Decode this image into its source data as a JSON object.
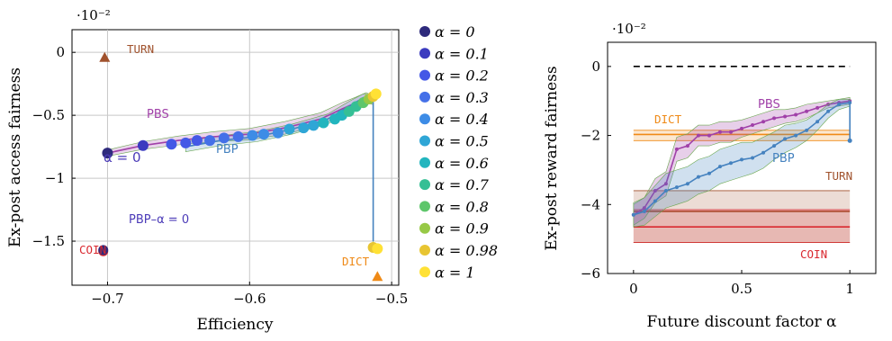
{
  "chart_data": [
    {
      "type": "scatter",
      "xlabel": "Efficiency",
      "ylabel": "Ex-post access fairness",
      "xlim": [
        -0.725,
        -0.495
      ],
      "ylim": [
        -1.85,
        0.18
      ],
      "y_multiplier": "·10⁻²",
      "xticks": [
        -0.7,
        -0.6,
        -0.5
      ],
      "xtick_labels": [
        "−0.7",
        "−0.6",
        "−0.5"
      ],
      "yticks": [
        0,
        -0.5,
        -1,
        -1.5
      ],
      "ytick_labels": [
        "0",
        "−0.5",
        "−1",
        "−1.5"
      ],
      "grid": true,
      "alpha_values": [
        0,
        0.1,
        0.2,
        0.3,
        0.4,
        0.5,
        0.6,
        0.7,
        0.8,
        0.9,
        0.98,
        1
      ],
      "alpha_colors": [
        "#2e2a7c",
        "#3b3bbf",
        "#4458e6",
        "#4470e8",
        "#3d8ce6",
        "#2fa6d6",
        "#22b5be",
        "#35bf95",
        "#5ec66b",
        "#97c946",
        "#e8c532",
        "#ffe135"
      ],
      "series": [
        {
          "name": "PBS",
          "color": "#a040a8",
          "points": [
            [
              -0.7,
              -0.8
            ],
            [
              -0.675,
              -0.74
            ],
            [
              -0.65,
              -0.7
            ],
            [
              -0.625,
              -0.67
            ],
            [
              -0.6,
              -0.65
            ],
            [
              -0.575,
              -0.6
            ],
            [
              -0.55,
              -0.53
            ],
            [
              -0.535,
              -0.45
            ],
            [
              -0.525,
              -0.4
            ],
            [
              -0.518,
              -0.36
            ],
            [
              -0.513,
              -0.38
            ]
          ],
          "band": [
            0.025,
            0.03,
            0.035,
            0.04,
            0.045,
            0.05,
            0.05,
            0.05,
            0.045,
            0.04,
            0.035
          ]
        },
        {
          "name": "PBP",
          "color": "#4582bf",
          "points": [
            [
              -0.645,
              -0.75
            ],
            [
              -0.62,
              -0.7
            ],
            [
              -0.595,
              -0.67
            ],
            [
              -0.57,
              -0.61
            ],
            [
              -0.545,
              -0.53
            ],
            [
              -0.53,
              -0.43
            ],
            [
              -0.52,
              -0.36
            ],
            [
              -0.513,
              -0.36
            ],
            [
              -0.513,
              -1.5
            ]
          ],
          "band": [
            0.04,
            0.04,
            0.04,
            0.04,
            0.04,
            0.04,
            0.03,
            0.02,
            0.02
          ]
        }
      ],
      "alpha_points": [
        [
          -0.7,
          -0.8,
          0
        ],
        [
          -0.675,
          -0.74,
          0.1
        ],
        [
          -0.655,
          -0.73,
          0.2
        ],
        [
          -0.645,
          -0.72,
          0.2
        ],
        [
          -0.637,
          -0.7,
          0.2
        ],
        [
          -0.628,
          -0.7,
          0.3
        ],
        [
          -0.618,
          -0.68,
          0.3
        ],
        [
          -0.608,
          -0.67,
          0.3
        ],
        [
          -0.598,
          -0.66,
          0.4
        ],
        [
          -0.59,
          -0.65,
          0.4
        ],
        [
          -0.58,
          -0.64,
          0.4
        ],
        [
          -0.572,
          -0.61,
          0.5
        ],
        [
          -0.562,
          -0.6,
          0.5
        ],
        [
          -0.555,
          -0.58,
          0.5
        ],
        [
          -0.548,
          -0.56,
          0.6
        ],
        [
          -0.54,
          -0.53,
          0.6
        ],
        [
          -0.535,
          -0.5,
          0.6
        ],
        [
          -0.53,
          -0.47,
          0.7
        ],
        [
          -0.525,
          -0.43,
          0.7
        ],
        [
          -0.52,
          -0.4,
          0.8
        ],
        [
          -0.516,
          -0.37,
          0.9
        ],
        [
          -0.513,
          -0.35,
          0.98
        ],
        [
          -0.511,
          -0.33,
          1
        ],
        [
          -0.513,
          -1.55,
          0.98
        ],
        [
          -0.51,
          -1.56,
          1
        ]
      ],
      "markers": [
        {
          "label": "TURN",
          "x": -0.702,
          "y": -0.04,
          "shape": "triangle",
          "color": "#a0522d"
        },
        {
          "label": "DICT",
          "x": -0.51,
          "y": -1.78,
          "shape": "triangle",
          "color": "#ef8a17"
        },
        {
          "label": "COIN",
          "x": -0.703,
          "y": -1.58,
          "shape": "circle",
          "color": "#d9282f"
        },
        {
          "label": "PBP–α = 0",
          "x": -0.703,
          "y": -1.57,
          "shape": "circle",
          "color": "#2e2a7c"
        }
      ],
      "annotations": [
        "PBS",
        "PBP",
        "α = 0"
      ]
    },
    {
      "type": "line",
      "xlabel": "Future discount factor α",
      "ylabel": "Ex-post reward fairness",
      "xlim": [
        -0.12,
        1.12
      ],
      "ylim": [
        -6,
        0.7
      ],
      "y_multiplier": "·10⁻²",
      "xticks": [
        0,
        0.5,
        1
      ],
      "xtick_labels": [
        "0",
        "0.5",
        "1"
      ],
      "yticks": [
        0,
        -2,
        -4,
        -6
      ],
      "ytick_labels": [
        "0",
        "−2",
        "−4",
        "−6"
      ],
      "grid": false,
      "reference_line": {
        "y": 0,
        "style": "dashed",
        "color": "#000000"
      },
      "series": [
        {
          "name": "PBS",
          "color": "#a040a8",
          "x": [
            0,
            0.05,
            0.1,
            0.15,
            0.2,
            0.25,
            0.3,
            0.35,
            0.4,
            0.45,
            0.5,
            0.55,
            0.6,
            0.65,
            0.7,
            0.75,
            0.8,
            0.85,
            0.9,
            0.95,
            1
          ],
          "values": [
            -4.3,
            -4.1,
            -3.6,
            -3.4,
            -2.4,
            -2.3,
            -2.0,
            -2.0,
            -1.9,
            -1.9,
            -1.8,
            -1.7,
            -1.6,
            -1.5,
            -1.45,
            -1.4,
            -1.3,
            -1.2,
            -1.1,
            -1.05,
            -1.0
          ],
          "band": [
            0.3,
            0.3,
            0.35,
            0.35,
            0.35,
            0.35,
            0.3,
            0.3,
            0.3,
            0.3,
            0.25,
            0.25,
            0.25,
            0.25,
            0.2,
            0.2,
            0.2,
            0.15,
            0.1,
            0.1,
            0.1
          ]
        },
        {
          "name": "PBP",
          "color": "#4582bf",
          "x": [
            0,
            0.05,
            0.1,
            0.15,
            0.2,
            0.25,
            0.3,
            0.35,
            0.4,
            0.45,
            0.5,
            0.55,
            0.6,
            0.65,
            0.7,
            0.75,
            0.8,
            0.85,
            0.9,
            0.95,
            1
          ],
          "values": [
            -4.3,
            -4.2,
            -3.9,
            -3.6,
            -3.5,
            -3.4,
            -3.2,
            -3.1,
            -2.9,
            -2.8,
            -2.7,
            -2.65,
            -2.5,
            -2.3,
            -2.1,
            -2.0,
            -1.85,
            -1.6,
            -1.3,
            -1.1,
            -1.05
          ],
          "band": [
            0.35,
            0.4,
            0.45,
            0.5,
            0.5,
            0.5,
            0.5,
            0.5,
            0.5,
            0.5,
            0.5,
            0.45,
            0.45,
            0.4,
            0.4,
            0.35,
            0.3,
            0.25,
            0.2,
            0.15,
            0.1
          ],
          "end_marker": -2.15
        }
      ],
      "bands": [
        {
          "name": "DICT",
          "y": -1.97,
          "low": -2.15,
          "high": -1.85,
          "color": "#ef8a17"
        },
        {
          "name": "TURN",
          "y": -4.2,
          "low": -5.1,
          "high": -3.6,
          "color": "#a0522d"
        },
        {
          "name": "COIN",
          "y": -4.65,
          "low": -5.1,
          "high": -4.15,
          "color": "#d9282f"
        }
      ]
    }
  ]
}
